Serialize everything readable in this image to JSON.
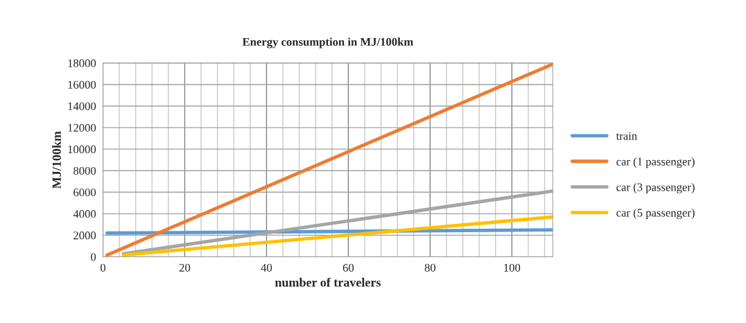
{
  "chart_data": {
    "type": "line",
    "title": "Energy consumption in MJ/100km",
    "xlabel": "number of travelers",
    "ylabel": "MJ/100km",
    "xlim": [
      0,
      110
    ],
    "xticks": [
      0,
      20,
      40,
      60,
      80,
      100
    ],
    "ylim": [
      0,
      18000
    ],
    "yticks": [
      0,
      2000,
      4000,
      6000,
      8000,
      10000,
      12000,
      14000,
      16000,
      18000
    ],
    "grid": true,
    "legend": "right",
    "marker": "none",
    "line_style": "solid",
    "series": [
      {
        "name": "train",
        "color": "#5b9bd5",
        "x": [
          1,
          110
        ],
        "values": [
          2200,
          2500
        ]
      },
      {
        "name": "car (1 passenger)",
        "color": "#ed7d31",
        "x": [
          1,
          110
        ],
        "values": [
          160,
          17900
        ]
      },
      {
        "name": "car (3 passenger)",
        "color": "#a5a5a5",
        "x": [
          5,
          110
        ],
        "values": [
          280,
          6100
        ]
      },
      {
        "name": "car (5 passenger)",
        "color": "#ffc000",
        "x": [
          5,
          110
        ],
        "values": [
          170,
          3700
        ]
      }
    ]
  }
}
